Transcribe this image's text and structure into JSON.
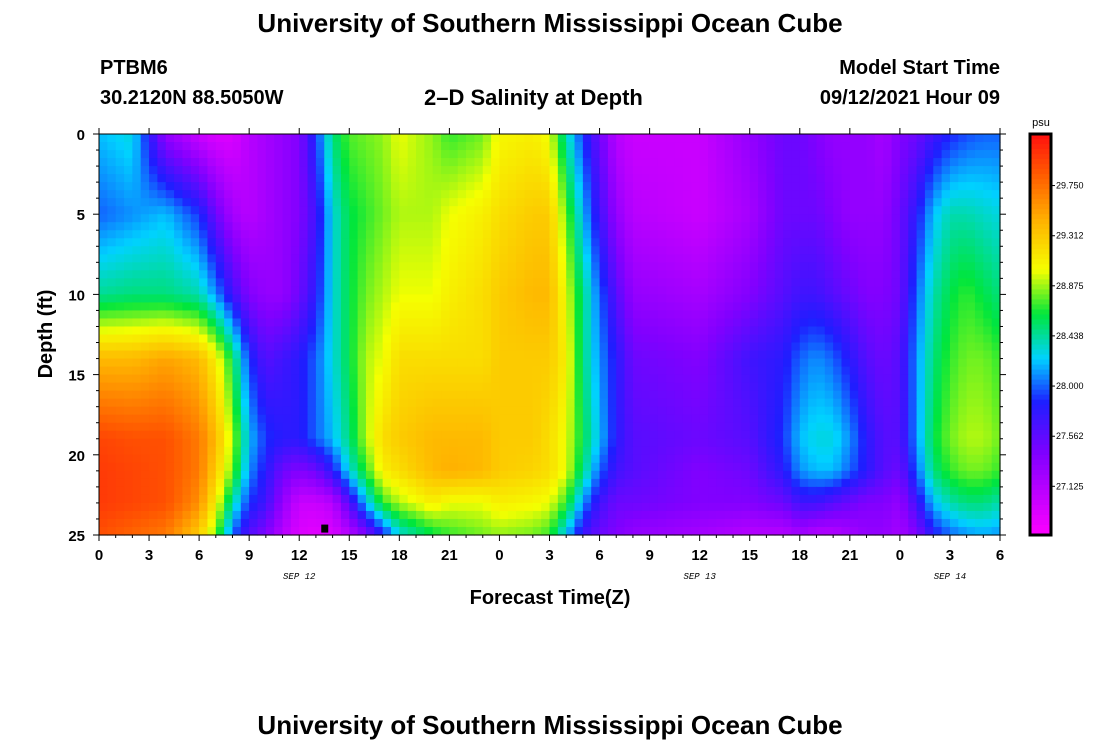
{
  "header": {
    "title": "University of Southern Mississippi Ocean Cube",
    "station_id": "PTBM6",
    "station_coords": "30.2120N  88.5050W",
    "plot_title": "2–D Salinity at Depth",
    "model_label": "Model Start Time",
    "model_time": "09/12/2021 Hour 09"
  },
  "footer": {
    "title": "University of Southern Mississippi Ocean Cube"
  },
  "chart_data": {
    "type": "heatmap",
    "title": "2–D Salinity at Depth",
    "xlabel": "Forecast Time(Z)",
    "ylabel": "Depth (ft)",
    "x_tick_labels": [
      "0",
      "3",
      "6",
      "9",
      "12",
      "15",
      "18",
      "21",
      "0",
      "3",
      "6",
      "9",
      "12",
      "15",
      "18",
      "21",
      "0",
      "3",
      "6"
    ],
    "x_range_hours": [
      0,
      54
    ],
    "date_labels": [
      {
        "label": "SEP 12",
        "hour": 12
      },
      {
        "label": "SEP 13",
        "hour": 36
      },
      {
        "label": "SEP 14",
        "hour": 51
      }
    ],
    "y_tick_labels": [
      "0",
      "5",
      "10",
      "15",
      "20",
      "25"
    ],
    "ylim_ft": [
      0,
      25
    ],
    "colorbar": {
      "unit": "psu",
      "range": [
        26.7,
        30.2
      ],
      "tick_labels": [
        "29.750",
        "29.312",
        "28.875",
        "28.438",
        "28.000",
        "27.562",
        "27.125"
      ],
      "tick_values": [
        29.75,
        29.312,
        28.875,
        28.438,
        28.0,
        27.562,
        27.125
      ]
    },
    "marker": {
      "hour": 13.5,
      "depth_ft": 24.6
    },
    "salinity_profiles": {
      "depths_ft": [
        0,
        5,
        10,
        14,
        19,
        21,
        23,
        25
      ],
      "profiles": [
        {
          "hour": 0,
          "psu": [
            28.2,
            28.0,
            28.45,
            29.4,
            29.95,
            30.0,
            30.0,
            29.9
          ]
        },
        {
          "hour": 2,
          "psu": [
            28.3,
            28.1,
            28.5,
            29.4,
            29.9,
            29.95,
            29.95,
            29.8
          ]
        },
        {
          "hour": 4,
          "psu": [
            27.3,
            28.2,
            28.5,
            29.5,
            29.9,
            29.9,
            29.9,
            29.7
          ]
        },
        {
          "hour": 6,
          "psu": [
            27.0,
            27.9,
            28.4,
            29.4,
            29.7,
            29.7,
            29.6,
            29.3
          ]
        },
        {
          "hour": 7,
          "psu": [
            26.9,
            27.5,
            28.1,
            29.1,
            29.4,
            29.3,
            29.1,
            28.8
          ]
        },
        {
          "hour": 8,
          "psu": [
            26.9,
            27.2,
            27.7,
            28.6,
            28.9,
            28.8,
            28.4,
            28.0
          ]
        },
        {
          "hour": 9,
          "psu": [
            27.1,
            27.1,
            27.4,
            27.9,
            28.2,
            28.1,
            27.9,
            27.6
          ]
        },
        {
          "hour": 10,
          "psu": [
            27.2,
            27.2,
            27.3,
            27.6,
            27.9,
            27.8,
            27.7,
            27.4
          ]
        },
        {
          "hour": 11,
          "psu": [
            27.3,
            27.3,
            27.3,
            27.7,
            27.8,
            27.5,
            27.3,
            27.1
          ]
        },
        {
          "hour": 12,
          "psu": [
            27.4,
            27.4,
            27.5,
            27.8,
            27.8,
            27.4,
            27.0,
            26.9
          ]
        },
        {
          "hour": 13,
          "psu": [
            27.9,
            27.7,
            27.8,
            28.0,
            28.0,
            27.5,
            27.0,
            26.85
          ]
        },
        {
          "hour": 14,
          "psu": [
            28.5,
            28.3,
            28.3,
            28.3,
            28.2,
            27.8,
            27.1,
            26.9
          ]
        },
        {
          "hour": 15,
          "psu": [
            28.75,
            28.6,
            28.6,
            28.6,
            28.5,
            28.3,
            27.6,
            27.1
          ]
        },
        {
          "hour": 16,
          "psu": [
            28.8,
            28.7,
            28.8,
            28.9,
            28.9,
            28.7,
            28.2,
            27.4
          ]
        },
        {
          "hour": 17,
          "psu": [
            28.85,
            28.8,
            28.9,
            29.0,
            29.2,
            29.1,
            28.7,
            27.8
          ]
        },
        {
          "hour": 18,
          "psu": [
            29.0,
            28.9,
            29.0,
            29.2,
            29.3,
            29.2,
            28.9,
            28.3
          ]
        },
        {
          "hour": 20,
          "psu": [
            28.85,
            28.9,
            29.0,
            29.2,
            29.4,
            29.4,
            29.1,
            28.6
          ]
        },
        {
          "hour": 21,
          "psu": [
            28.7,
            29.0,
            29.1,
            29.2,
            29.4,
            29.45,
            29.0,
            28.7
          ]
        },
        {
          "hour": 23,
          "psu": [
            28.8,
            29.1,
            29.2,
            29.2,
            29.4,
            29.4,
            29.0,
            28.8
          ]
        },
        {
          "hour": 24,
          "psu": [
            29.05,
            29.2,
            29.3,
            29.3,
            29.3,
            29.3,
            29.1,
            28.85
          ]
        },
        {
          "hour": 26,
          "psu": [
            29.1,
            29.3,
            29.4,
            29.3,
            29.3,
            29.25,
            29.05,
            28.8
          ]
        },
        {
          "hour": 27,
          "psu": [
            29.0,
            29.3,
            29.4,
            29.3,
            29.2,
            29.2,
            29.0,
            28.7
          ]
        },
        {
          "hour": 28,
          "psu": [
            28.4,
            28.8,
            29.0,
            29.1,
            29.0,
            29.0,
            28.7,
            28.2
          ]
        },
        {
          "hour": 29,
          "psu": [
            27.9,
            28.2,
            28.5,
            28.5,
            28.6,
            28.5,
            28.1,
            27.7
          ]
        },
        {
          "hour": 30,
          "psu": [
            27.5,
            27.7,
            28.0,
            28.1,
            28.2,
            28.0,
            27.7,
            27.5
          ]
        },
        {
          "hour": 31,
          "psu": [
            27.1,
            27.3,
            27.6,
            27.8,
            27.8,
            27.7,
            27.5,
            27.4
          ]
        },
        {
          "hour": 32,
          "psu": [
            27.0,
            27.1,
            27.3,
            27.5,
            27.6,
            27.6,
            27.5,
            27.3
          ]
        },
        {
          "hour": 36,
          "psu": [
            27.0,
            27.0,
            27.2,
            27.4,
            27.5,
            27.4,
            27.4,
            27.2
          ]
        },
        {
          "hour": 39,
          "psu": [
            27.3,
            27.2,
            27.4,
            27.7,
            27.6,
            27.5,
            27.4,
            27.1
          ]
        },
        {
          "hour": 41,
          "psu": [
            27.5,
            27.5,
            27.6,
            27.8,
            27.9,
            27.8,
            27.5,
            27.1
          ]
        },
        {
          "hour": 42,
          "psu": [
            27.5,
            27.5,
            27.7,
            28.0,
            28.2,
            28.1,
            27.7,
            27.2
          ]
        },
        {
          "hour": 43,
          "psu": [
            27.4,
            27.5,
            27.7,
            28.1,
            28.3,
            28.2,
            27.7,
            27.1
          ]
        },
        {
          "hour": 44,
          "psu": [
            27.3,
            27.4,
            27.6,
            28.0,
            28.3,
            28.2,
            27.6,
            27.1
          ]
        },
        {
          "hour": 45,
          "psu": [
            27.3,
            27.3,
            27.5,
            27.8,
            28.1,
            28.0,
            27.5,
            27.2
          ]
        },
        {
          "hour": 46,
          "psu": [
            27.3,
            27.3,
            27.4,
            27.6,
            27.8,
            27.8,
            27.4,
            27.3
          ]
        },
        {
          "hour": 47,
          "psu": [
            27.2,
            27.3,
            27.4,
            27.5,
            27.6,
            27.6,
            27.4,
            27.3
          ]
        },
        {
          "hour": 48,
          "psu": [
            27.4,
            27.5,
            27.5,
            27.6,
            27.6,
            27.5,
            27.3,
            27.2
          ]
        },
        {
          "hour": 49,
          "psu": [
            27.5,
            27.8,
            28.0,
            28.1,
            28.1,
            28.0,
            27.7,
            27.4
          ]
        },
        {
          "hour": 50,
          "psu": [
            27.7,
            28.2,
            28.4,
            28.5,
            28.6,
            28.5,
            28.2,
            27.8
          ]
        },
        {
          "hour": 51,
          "psu": [
            27.85,
            28.4,
            28.6,
            28.7,
            28.8,
            28.7,
            28.4,
            28.0
          ]
        },
        {
          "hour": 52,
          "psu": [
            27.95,
            28.4,
            28.7,
            28.8,
            28.9,
            28.8,
            28.5,
            28.1
          ]
        },
        {
          "hour": 53,
          "psu": [
            28.0,
            28.35,
            28.6,
            28.8,
            28.9,
            28.8,
            28.5,
            28.15
          ]
        },
        {
          "hour": 54,
          "psu": [
            28.0,
            28.3,
            28.5,
            28.7,
            28.8,
            28.7,
            28.4,
            28.1
          ]
        }
      ]
    }
  }
}
